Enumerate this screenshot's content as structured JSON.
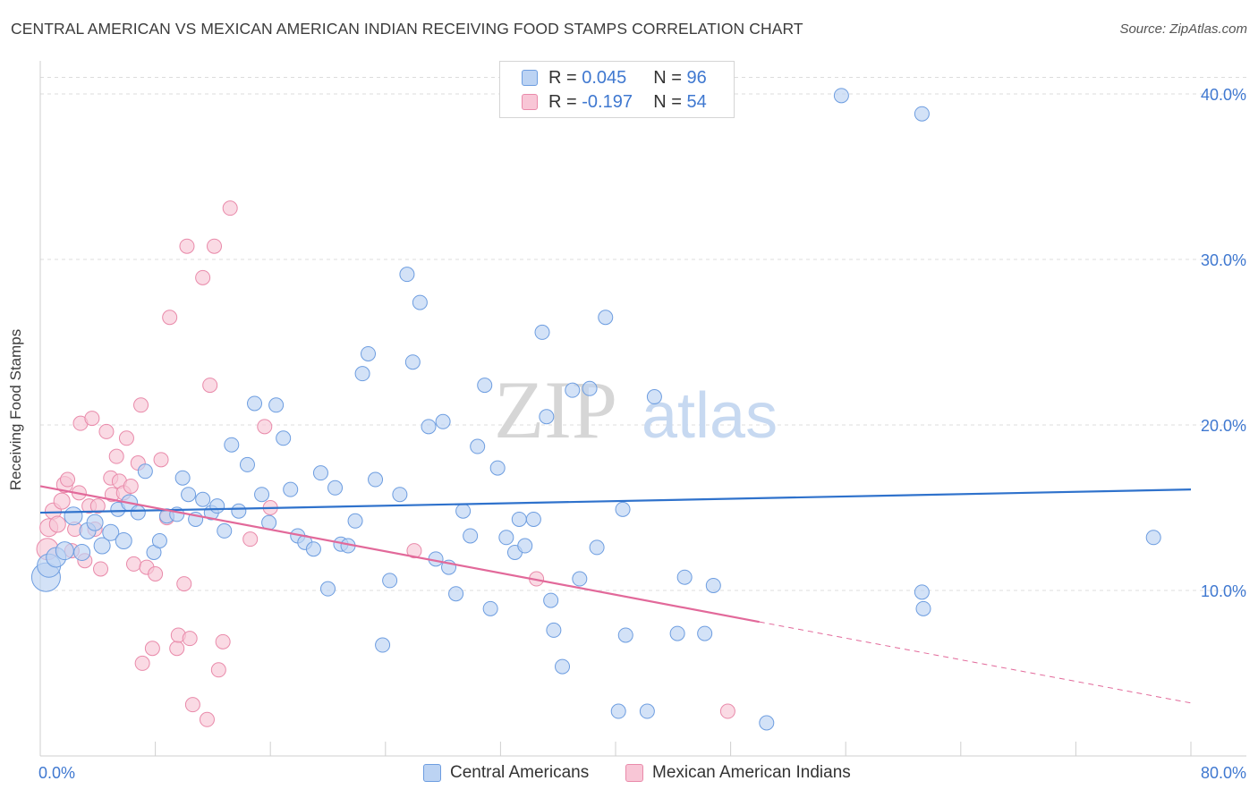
{
  "title": "CENTRAL AMERICAN VS MEXICAN AMERICAN INDIAN RECEIVING FOOD STAMPS CORRELATION CHART",
  "source": "Source: ZipAtlas.com",
  "watermark": {
    "zip": "ZIP",
    "atlas": "atlas"
  },
  "legend": {
    "rows": [
      {
        "r_label": "R =",
        "r_value": "0.045",
        "n_label": "N =",
        "n_value": "96"
      },
      {
        "r_label": "R =",
        "r_value": "-0.197",
        "n_label": "N =",
        "n_value": "54"
      }
    ]
  },
  "bottom_legend": {
    "series1": "Central Americans",
    "series2": "Mexican American Indians"
  },
  "colors": {
    "blue_fill": "#bcd3f3",
    "blue_stroke": "#6d9de0",
    "blue_line": "#2f72cc",
    "pink_fill": "#f8c6d6",
    "pink_stroke": "#e98aaa",
    "pink_line": "#e2699a",
    "grid": "#dcdcdc",
    "tick_label": "#3f78d0"
  },
  "chart_data": {
    "type": "scatter",
    "title": "CENTRAL AMERICAN VS MEXICAN AMERICAN INDIAN RECEIVING FOOD STAMPS CORRELATION CHART",
    "xlabel": "",
    "ylabel": "Receiving Food Stamps",
    "xlim": [
      0,
      80
    ],
    "ylim": [
      0,
      42
    ],
    "grid": true,
    "x_tick_labels": [
      {
        "x": 0,
        "label": "0.0%"
      },
      {
        "x": 80,
        "label": "80.0%"
      }
    ],
    "y_tick_labels": [
      {
        "y": 10,
        "label": "10.0%"
      },
      {
        "y": 20,
        "label": "20.0%"
      },
      {
        "y": 30,
        "label": "30.0%"
      },
      {
        "y": 40,
        "label": "40.0%"
      }
    ],
    "legend_position": "top-center",
    "series": [
      {
        "name": "Central Americans",
        "r": 0.045,
        "n": 96,
        "trend": {
          "x": [
            0,
            80
          ],
          "y": [
            14.7,
            16.1
          ]
        },
        "points": [
          [
            0.4,
            10.8,
            16
          ],
          [
            0.6,
            11.5,
            13
          ],
          [
            1.1,
            12.0,
            11
          ],
          [
            1.7,
            12.4,
            10
          ],
          [
            2.3,
            14.5,
            10
          ],
          [
            2.9,
            12.3,
            9
          ],
          [
            3.3,
            13.6,
            9
          ],
          [
            3.8,
            14.1,
            9
          ],
          [
            4.3,
            12.7,
            9
          ],
          [
            4.9,
            13.5,
            9
          ],
          [
            5.4,
            14.9,
            8
          ],
          [
            5.8,
            13.0,
            9
          ],
          [
            6.2,
            15.3,
            9
          ],
          [
            6.8,
            14.7,
            8
          ],
          [
            7.3,
            17.2,
            8
          ],
          [
            7.9,
            12.3,
            8
          ],
          [
            8.3,
            13.0,
            8
          ],
          [
            8.8,
            14.5,
            8
          ],
          [
            9.5,
            14.6,
            8
          ],
          [
            9.9,
            16.8,
            8
          ],
          [
            10.3,
            15.8,
            8
          ],
          [
            10.8,
            14.3,
            8
          ],
          [
            11.3,
            15.5,
            8
          ],
          [
            11.9,
            14.7,
            8
          ],
          [
            12.3,
            15.1,
            8
          ],
          [
            12.8,
            13.6,
            8
          ],
          [
            13.3,
            18.8,
            8
          ],
          [
            13.8,
            14.8,
            8
          ],
          [
            14.4,
            17.6,
            8
          ],
          [
            14.9,
            21.3,
            8
          ],
          [
            15.4,
            15.8,
            8
          ],
          [
            15.9,
            14.1,
            8
          ],
          [
            16.4,
            21.2,
            8
          ],
          [
            16.9,
            19.2,
            8
          ],
          [
            17.4,
            16.1,
            8
          ],
          [
            17.9,
            13.3,
            8
          ],
          [
            18.4,
            12.9,
            8
          ],
          [
            19.0,
            12.5,
            8
          ],
          [
            19.5,
            17.1,
            8
          ],
          [
            20.0,
            10.1,
            8
          ],
          [
            20.5,
            16.2,
            8
          ],
          [
            20.9,
            12.8,
            8
          ],
          [
            21.4,
            12.7,
            8
          ],
          [
            21.9,
            14.2,
            8
          ],
          [
            22.4,
            23.1,
            8
          ],
          [
            22.8,
            24.3,
            8
          ],
          [
            23.3,
            16.7,
            8
          ],
          [
            23.8,
            6.7,
            8
          ],
          [
            24.3,
            10.6,
            8
          ],
          [
            25.0,
            15.8,
            8
          ],
          [
            25.5,
            29.1,
            8
          ],
          [
            25.9,
            23.8,
            8
          ],
          [
            26.4,
            27.4,
            8
          ],
          [
            27.0,
            19.9,
            8
          ],
          [
            27.5,
            11.9,
            8
          ],
          [
            28.0,
            20.2,
            8
          ],
          [
            28.4,
            11.4,
            8
          ],
          [
            28.9,
            9.8,
            8
          ],
          [
            29.4,
            14.8,
            8
          ],
          [
            29.9,
            13.3,
            8
          ],
          [
            30.4,
            18.7,
            8
          ],
          [
            30.9,
            22.4,
            8
          ],
          [
            31.3,
            8.9,
            8
          ],
          [
            31.8,
            17.4,
            8
          ],
          [
            32.4,
            13.2,
            8
          ],
          [
            33.0,
            12.3,
            8
          ],
          [
            33.3,
            14.3,
            8
          ],
          [
            33.7,
            12.7,
            8
          ],
          [
            34.3,
            14.3,
            8
          ],
          [
            34.9,
            25.6,
            8
          ],
          [
            35.2,
            20.5,
            8
          ],
          [
            35.7,
            7.6,
            8
          ],
          [
            36.3,
            5.4,
            8
          ],
          [
            37.0,
            22.1,
            8
          ],
          [
            37.5,
            10.7,
            8
          ],
          [
            38.2,
            22.2,
            8
          ],
          [
            38.7,
            12.6,
            8
          ],
          [
            39.3,
            26.5,
            8
          ],
          [
            40.2,
            2.7,
            8
          ],
          [
            40.7,
            7.3,
            8
          ],
          [
            42.2,
            2.7,
            8
          ],
          [
            42.7,
            21.7,
            8
          ],
          [
            44.3,
            7.4,
            8
          ],
          [
            44.8,
            10.8,
            8
          ],
          [
            46.2,
            7.4,
            8
          ],
          [
            46.8,
            10.3,
            8
          ],
          [
            50.5,
            2.0,
            8
          ],
          [
            55.7,
            39.9,
            8
          ],
          [
            61.3,
            9.9,
            8
          ],
          [
            61.4,
            8.9,
            8
          ],
          [
            61.3,
            38.8,
            8
          ],
          [
            77.4,
            13.2,
            8
          ],
          [
            40.5,
            14.9,
            8
          ],
          [
            35.5,
            9.4,
            8
          ]
        ]
      },
      {
        "name": "Mexican American Indians",
        "r": -0.197,
        "n": 54,
        "trend": {
          "x": [
            0,
            50
          ],
          "y": [
            16.3,
            8.1
          ]
        },
        "trend_dashed": {
          "x": [
            50,
            80
          ],
          "y": [
            8.1,
            3.2
          ]
        },
        "points": [
          [
            0.5,
            12.5,
            12
          ],
          [
            0.6,
            13.8,
            10
          ],
          [
            0.9,
            14.8,
            9
          ],
          [
            1.2,
            14.0,
            9
          ],
          [
            1.5,
            15.4,
            9
          ],
          [
            1.7,
            16.4,
            9
          ],
          [
            1.9,
            16.7,
            8
          ],
          [
            2.2,
            12.4,
            8
          ],
          [
            2.4,
            13.7,
            8
          ],
          [
            2.7,
            15.9,
            8
          ],
          [
            2.8,
            20.1,
            8
          ],
          [
            3.1,
            11.8,
            8
          ],
          [
            3.4,
            15.1,
            8
          ],
          [
            3.6,
            20.4,
            8
          ],
          [
            3.8,
            13.7,
            8
          ],
          [
            4.0,
            15.1,
            8
          ],
          [
            4.2,
            11.3,
            8
          ],
          [
            4.6,
            19.6,
            8
          ],
          [
            4.9,
            16.8,
            8
          ],
          [
            5.0,
            15.8,
            8
          ],
          [
            5.3,
            18.1,
            8
          ],
          [
            5.5,
            16.6,
            8
          ],
          [
            5.8,
            15.9,
            8
          ],
          [
            6.0,
            19.2,
            8
          ],
          [
            6.3,
            16.3,
            8
          ],
          [
            6.5,
            11.6,
            8
          ],
          [
            6.8,
            17.7,
            8
          ],
          [
            7.0,
            21.2,
            8
          ],
          [
            7.1,
            5.6,
            8
          ],
          [
            7.4,
            11.4,
            8
          ],
          [
            7.8,
            6.5,
            8
          ],
          [
            8.0,
            11.0,
            8
          ],
          [
            8.4,
            17.9,
            8
          ],
          [
            8.8,
            14.4,
            8
          ],
          [
            9.0,
            26.5,
            8
          ],
          [
            9.5,
            6.5,
            8
          ],
          [
            9.6,
            7.3,
            8
          ],
          [
            10.0,
            10.4,
            8
          ],
          [
            10.2,
            30.8,
            8
          ],
          [
            10.4,
            7.1,
            8
          ],
          [
            10.6,
            3.1,
            8
          ],
          [
            11.3,
            28.9,
            8
          ],
          [
            11.6,
            2.2,
            8
          ],
          [
            11.8,
            22.4,
            8
          ],
          [
            12.1,
            30.8,
            8
          ],
          [
            12.4,
            5.2,
            8
          ],
          [
            12.7,
            6.9,
            8
          ],
          [
            13.2,
            33.1,
            8
          ],
          [
            14.6,
            13.1,
            8
          ],
          [
            15.6,
            19.9,
            8
          ],
          [
            16.0,
            15.0,
            8
          ],
          [
            26.0,
            12.4,
            8
          ],
          [
            34.5,
            10.7,
            8
          ],
          [
            47.8,
            2.7,
            8
          ]
        ]
      }
    ]
  }
}
